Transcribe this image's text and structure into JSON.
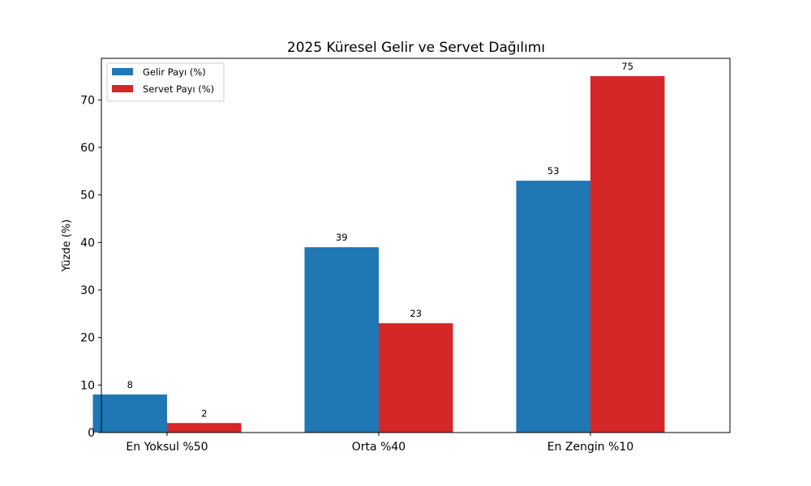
{
  "chart_data": {
    "type": "bar",
    "title": "2025 Küresel Gelir ve Servet Dağılımı",
    "xlabel": "",
    "ylabel": "Yüzde (%)",
    "categories": [
      "En Yoksul %50",
      "Orta %40",
      "En Zengin %10"
    ],
    "series": [
      {
        "name": "Gelir Payı (%)",
        "values": [
          8,
          39,
          53
        ],
        "color": "#1f77b4"
      },
      {
        "name": "Servet Payı (%)",
        "values": [
          2,
          23,
          75
        ],
        "color": "#d62728"
      }
    ],
    "ylim": [
      0,
      78.75
    ],
    "yticks": [
      0,
      10,
      20,
      30,
      40,
      50,
      60,
      70
    ],
    "grid": false,
    "legend_position": "top-left",
    "data_labels": true
  }
}
